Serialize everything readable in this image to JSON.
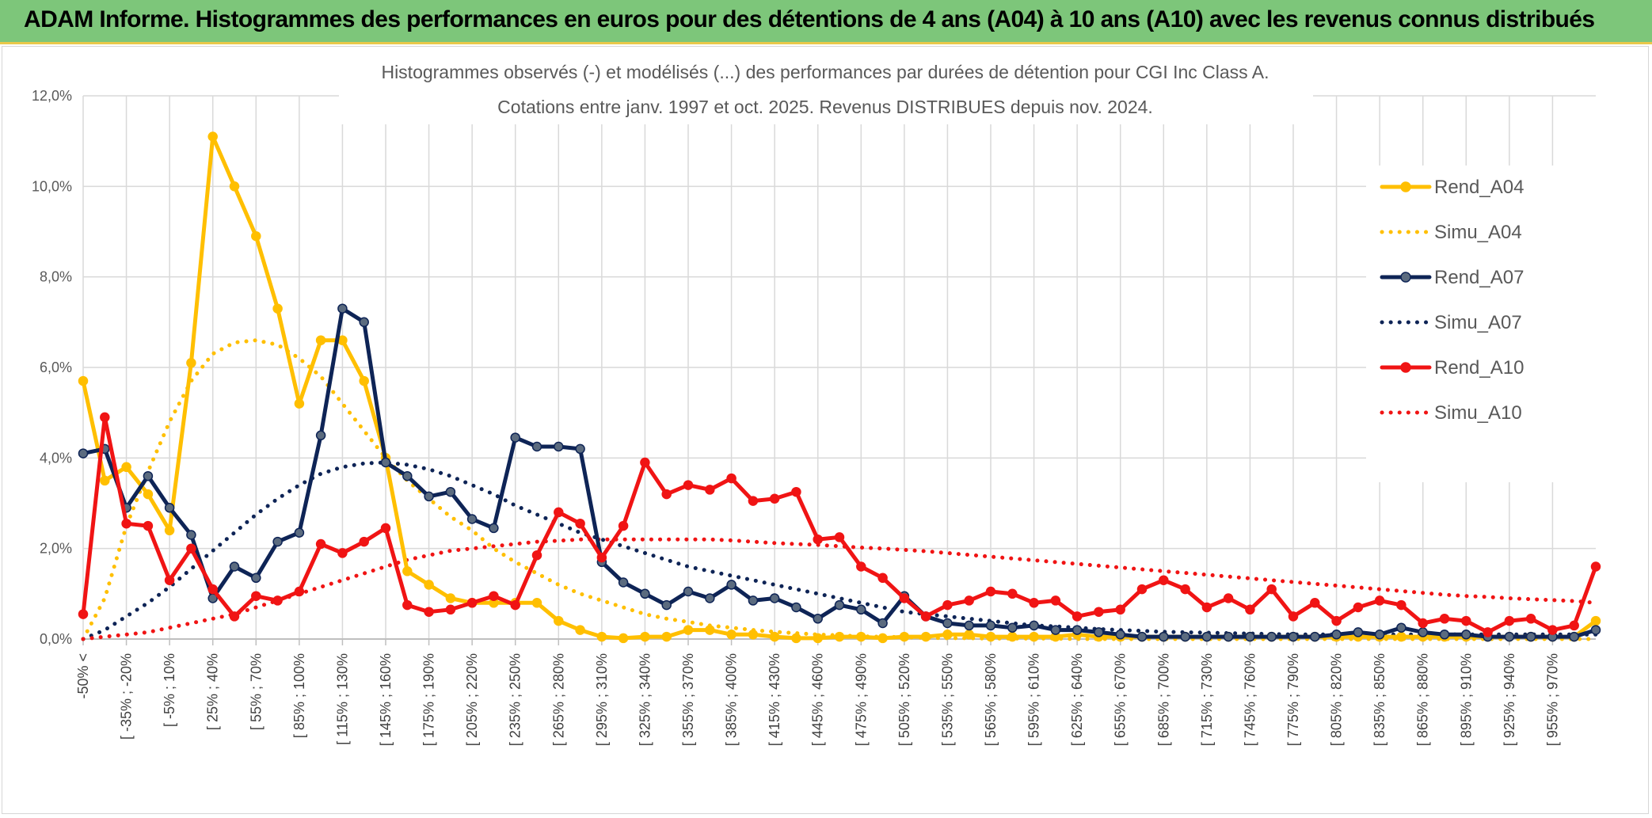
{
  "banner": {
    "title": "ADAM Informe. Histogrammes des performances en euros pour des détentions de 4 ans (A04) à 10 ans (A10) avec les revenus connus distribués"
  },
  "colors": {
    "a04": "#ffbf00",
    "a07": "#0e2456",
    "a10": "#f01414",
    "grid": "#d9d9d9",
    "banner": "#7dc67a"
  },
  "chart_data": {
    "type": "line",
    "title": "Histogrammes observés (-) et modélisés (...) des performances par durées de détention pour CGI Inc Class A.",
    "subtitle": "Cotations entre janv. 1997 et oct. 2025. Revenus DISTRIBUES depuis nov. 2024.",
    "ylim": [
      0,
      12
    ],
    "y_ticks": [
      "0,0%",
      "2,0%",
      "4,0%",
      "6,0%",
      "8,0%",
      "10,0%",
      "12,0%"
    ],
    "x_tick_labels": [
      "-50% <",
      "[ -35% ; -20%",
      "[ -5% ; 10%",
      "[ 25% ; 40%",
      "[ 55% ; 70%",
      "[ 85% ; 100%",
      "[ 115% ; 130%",
      "[ 145% ; 160%",
      "[ 175% ; 190%",
      "[ 205% ; 220%",
      "[ 235% ; 250%",
      "[ 265% ; 280%",
      "[ 295% ; 310%",
      "[ 325% ; 340%",
      "[ 355% ; 370%",
      "[ 385% ; 400%",
      "[ 415% ; 430%",
      "[ 445% ; 460%",
      "[ 475% ; 490%",
      "[ 505% ; 520%",
      "[ 535% ; 550%",
      "[ 565% ; 580%",
      "[ 595% ; 610%",
      "[ 625% ; 640%",
      "[ 655% ; 670%",
      "[ 685% ; 700%",
      "[ 715% ; 730%",
      "[ 745% ; 760%",
      "[ 775% ; 790%",
      "[ 805% ; 820%",
      "[ 835% ; 850%",
      "[ 865% ; 880%",
      "[ 895% ; 910%",
      "[ 925% ; 940%",
      "[ 955% ; 970%"
    ],
    "legend_position": "right",
    "grid": true,
    "series": [
      {
        "name": "Rend_A04",
        "style": "solid",
        "color": "#ffbf00",
        "values": [
          5.7,
          3.5,
          3.8,
          3.2,
          2.4,
          6.1,
          11.1,
          10.0,
          8.9,
          7.3,
          5.2,
          6.6,
          6.6,
          5.7,
          4.0,
          1.5,
          1.2,
          0.9,
          0.8,
          0.8,
          0.8,
          0.8,
          0.4,
          0.2,
          0.05,
          0.02,
          0.05,
          0.05,
          0.2,
          0.2,
          0.1,
          0.1,
          0.05,
          0.02,
          0.02,
          0.05,
          0.05,
          0.02,
          0.05,
          0.05,
          0.1,
          0.1,
          0.05,
          0.05,
          0.05,
          0.05,
          0.1,
          0.05,
          0.05,
          0.05,
          0.05,
          0.05,
          0.05,
          0.05,
          0.05,
          0.05,
          0.05,
          0.05,
          0.05,
          0.05,
          0.05,
          0.05,
          0.05,
          0.05,
          0.05,
          0.05,
          0.05,
          0.05,
          0.05,
          0.05,
          0.4
        ]
      },
      {
        "name": "Simu_A04",
        "style": "dotted",
        "color": "#ffbf00",
        "values": [
          0.0,
          0.9,
          2.5,
          3.7,
          4.8,
          5.7,
          6.3,
          6.55,
          6.6,
          6.5,
          6.2,
          5.8,
          5.2,
          4.6,
          4.0,
          3.5,
          3.1,
          2.7,
          2.4,
          2.0,
          1.7,
          1.45,
          1.2,
          1.0,
          0.85,
          0.7,
          0.55,
          0.45,
          0.38,
          0.3,
          0.25,
          0.2,
          0.16,
          0.13,
          0.1,
          0.08,
          0.06,
          0.05,
          0.04,
          0.03,
          0.02,
          0.02,
          0.01,
          0.01,
          0.01,
          0.01,
          0.0,
          0.0,
          0.0,
          0.0,
          0.0,
          0.0,
          0.0,
          0.0,
          0.0,
          0.0,
          0.0,
          0.0,
          0.0,
          0.0,
          0.0,
          0.0,
          0.0,
          0.0,
          0.0,
          0.0,
          0.0,
          0.0,
          0.0,
          0.0,
          0.0
        ]
      },
      {
        "name": "Rend_A07",
        "style": "solid",
        "color": "#0e2456",
        "values": [
          4.1,
          4.2,
          2.9,
          3.6,
          2.9,
          2.3,
          0.9,
          1.6,
          1.35,
          2.15,
          2.35,
          4.5,
          7.3,
          7.0,
          3.9,
          3.6,
          3.15,
          3.25,
          2.65,
          2.45,
          4.45,
          4.25,
          4.25,
          4.2,
          1.7,
          1.25,
          1.0,
          0.75,
          1.05,
          0.9,
          1.2,
          0.85,
          0.9,
          0.7,
          0.45,
          0.75,
          0.65,
          0.35,
          0.95,
          0.5,
          0.35,
          0.3,
          0.3,
          0.25,
          0.3,
          0.2,
          0.2,
          0.15,
          0.1,
          0.05,
          0.05,
          0.05,
          0.05,
          0.05,
          0.05,
          0.05,
          0.05,
          0.05,
          0.1,
          0.15,
          0.1,
          0.25,
          0.15,
          0.1,
          0.1,
          0.05,
          0.05,
          0.05,
          0.05,
          0.05,
          0.2
        ]
      },
      {
        "name": "Simu_A07",
        "style": "dotted",
        "color": "#0e2456",
        "values": [
          0.0,
          0.2,
          0.5,
          0.8,
          1.15,
          1.55,
          1.95,
          2.35,
          2.75,
          3.1,
          3.4,
          3.65,
          3.8,
          3.88,
          3.9,
          3.85,
          3.75,
          3.6,
          3.4,
          3.2,
          2.95,
          2.75,
          2.55,
          2.35,
          2.2,
          2.05,
          1.9,
          1.75,
          1.6,
          1.5,
          1.4,
          1.3,
          1.2,
          1.1,
          1.0,
          0.9,
          0.8,
          0.7,
          0.6,
          0.55,
          0.5,
          0.45,
          0.4,
          0.35,
          0.3,
          0.28,
          0.25,
          0.22,
          0.2,
          0.18,
          0.16,
          0.15,
          0.14,
          0.13,
          0.12,
          0.11,
          0.1,
          0.1,
          0.1,
          0.1,
          0.1,
          0.1,
          0.1,
          0.1,
          0.1,
          0.1,
          0.1,
          0.1,
          0.1,
          0.1,
          0.1
        ]
      },
      {
        "name": "Rend_A10",
        "style": "solid",
        "color": "#f01414",
        "values": [
          0.55,
          4.9,
          2.55,
          2.5,
          1.3,
          2.0,
          1.1,
          0.5,
          0.95,
          0.85,
          1.05,
          2.1,
          1.9,
          2.15,
          2.45,
          0.75,
          0.6,
          0.65,
          0.8,
          0.95,
          0.75,
          1.85,
          2.8,
          2.55,
          1.8,
          2.5,
          3.9,
          3.2,
          3.4,
          3.3,
          3.55,
          3.05,
          3.1,
          3.25,
          2.2,
          2.25,
          1.6,
          1.35,
          0.9,
          0.5,
          0.75,
          0.85,
          1.05,
          1.0,
          0.8,
          0.85,
          0.5,
          0.6,
          0.65,
          1.1,
          1.3,
          1.1,
          0.7,
          0.9,
          0.65,
          1.1,
          0.5,
          0.8,
          0.4,
          0.7,
          0.85,
          0.75,
          0.35,
          0.45,
          0.4,
          0.15,
          0.4,
          0.45,
          0.2,
          0.3,
          1.6
        ]
      },
      {
        "name": "Simu_A10",
        "style": "dotted",
        "color": "#f01414",
        "values": [
          0.0,
          0.05,
          0.1,
          0.15,
          0.25,
          0.35,
          0.45,
          0.55,
          0.7,
          0.85,
          1.0,
          1.15,
          1.3,
          1.45,
          1.6,
          1.75,
          1.85,
          1.95,
          2.0,
          2.05,
          2.1,
          2.15,
          2.17,
          2.2,
          2.2,
          2.2,
          2.2,
          2.2,
          2.2,
          2.2,
          2.18,
          2.15,
          2.12,
          2.1,
          2.08,
          2.05,
          2.02,
          2.0,
          1.97,
          1.94,
          1.9,
          1.86,
          1.82,
          1.78,
          1.74,
          1.7,
          1.66,
          1.62,
          1.58,
          1.54,
          1.5,
          1.46,
          1.42,
          1.38,
          1.34,
          1.3,
          1.26,
          1.22,
          1.18,
          1.14,
          1.1,
          1.06,
          1.02,
          0.98,
          0.95,
          0.93,
          0.9,
          0.88,
          0.86,
          0.84,
          0.8
        ]
      }
    ]
  }
}
